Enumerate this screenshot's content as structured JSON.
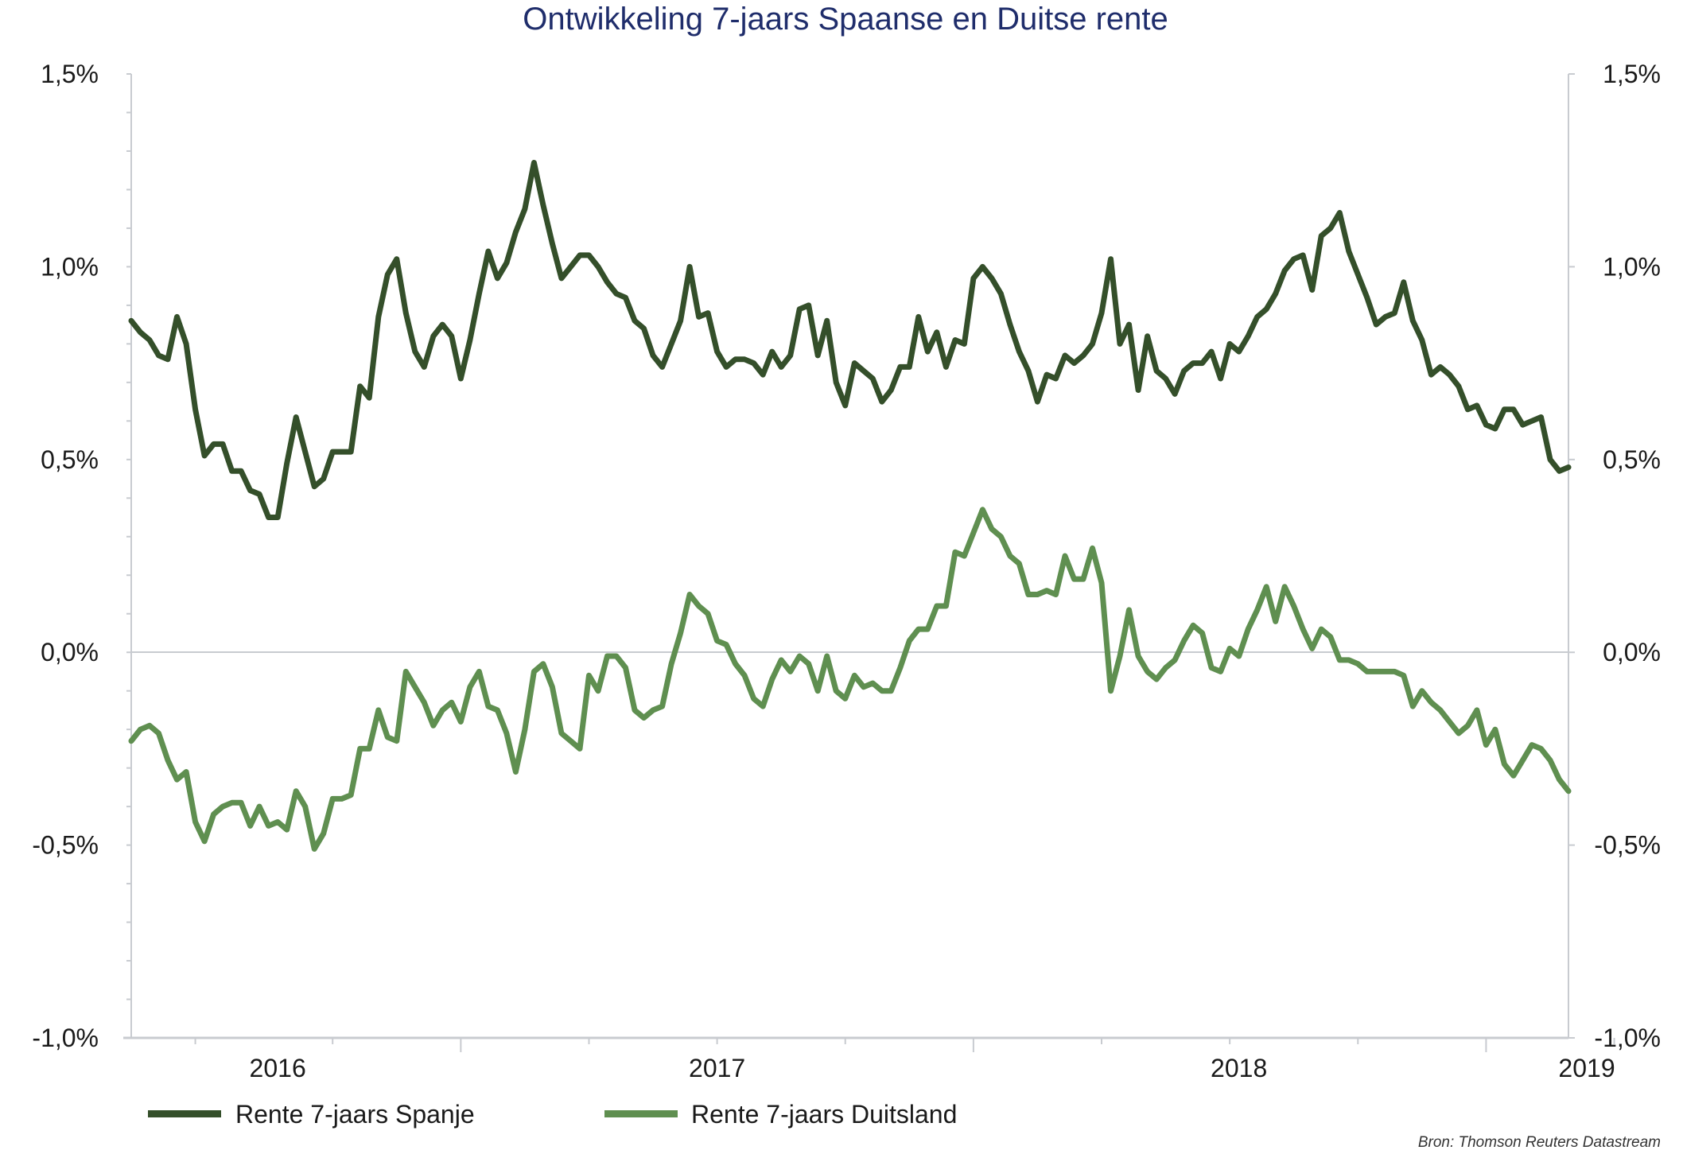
{
  "chart_data": {
    "type": "line",
    "title": "Ontwikkeling 7-jaars Spaanse en Duitse rente",
    "xlabel": "",
    "ylabel": "",
    "ylim": [
      -1.0,
      1.5
    ],
    "y_ticks": [
      1.5,
      1.0,
      0.5,
      0.0,
      -0.5,
      -1.0
    ],
    "y_tick_labels": [
      "1,5%",
      "1,0%",
      "0,5%",
      "0,0%",
      "-0,5%",
      "-1,0%"
    ],
    "y_tick_labels_right": [
      "1,5%",
      "1,0%",
      "0,5%",
      "0,0%",
      "-0,5%",
      "-1,0%"
    ],
    "x_tick_labels": [
      {
        "label": "2016",
        "index": 16
      },
      {
        "label": "2017",
        "index": 64
      },
      {
        "label": "2018",
        "index": 121
      },
      {
        "label": "2019",
        "index": 159
      }
    ],
    "x_minor_ticks": [
      7,
      22,
      36,
      50,
      64,
      78,
      92,
      106,
      120,
      134,
      148,
      162
    ],
    "x_major_ticks": [
      36,
      92,
      148
    ],
    "grid": false,
    "legend_position": "bottom-left",
    "source": "Bron: Thomson Reuters Datastream",
    "series": [
      {
        "name": "Rente 7-jaars Spanje",
        "color": "#344f2a",
        "values": [
          0.86,
          0.83,
          0.81,
          0.77,
          0.76,
          0.87,
          0.8,
          0.63,
          0.51,
          0.54,
          0.54,
          0.47,
          0.47,
          0.42,
          0.41,
          0.35,
          0.35,
          0.49,
          0.61,
          0.52,
          0.43,
          0.45,
          0.52,
          0.52,
          0.52,
          0.69,
          0.66,
          0.87,
          0.98,
          1.02,
          0.88,
          0.78,
          0.74,
          0.82,
          0.85,
          0.82,
          0.71,
          0.81,
          0.93,
          1.04,
          0.97,
          1.01,
          1.09,
          1.15,
          1.27,
          1.16,
          1.06,
          0.97,
          1.0,
          1.03,
          1.03,
          1.0,
          0.96,
          0.93,
          0.92,
          0.86,
          0.84,
          0.77,
          0.74,
          0.8,
          0.86,
          1.0,
          0.87,
          0.88,
          0.78,
          0.74,
          0.76,
          0.76,
          0.75,
          0.72,
          0.78,
          0.74,
          0.77,
          0.89,
          0.9,
          0.77,
          0.86,
          0.7,
          0.64,
          0.75,
          0.73,
          0.71,
          0.65,
          0.68,
          0.74,
          0.74,
          0.87,
          0.78,
          0.83,
          0.74,
          0.81,
          0.8,
          0.97,
          1.0,
          0.97,
          0.93,
          0.85,
          0.78,
          0.73,
          0.65,
          0.72,
          0.71,
          0.77,
          0.75,
          0.77,
          0.8,
          0.88,
          1.02,
          0.8,
          0.85,
          0.68,
          0.82,
          0.73,
          0.71,
          0.67,
          0.73,
          0.75,
          0.75,
          0.78,
          0.71,
          0.8,
          0.78,
          0.82,
          0.87,
          0.89,
          0.93,
          0.99,
          1.02,
          1.03,
          0.94,
          1.08,
          1.1,
          1.14,
          1.04,
          0.98,
          0.92,
          0.85,
          0.87,
          0.88,
          0.96,
          0.86,
          0.81,
          0.72,
          0.74,
          0.72,
          0.69,
          0.63,
          0.64,
          0.59,
          0.58,
          0.63,
          0.63,
          0.59,
          0.6,
          0.61,
          0.5,
          0.47,
          0.48
        ]
      },
      {
        "name": "Rente 7-jaars Duitsland",
        "color": "#5f8f50",
        "values": [
          -0.23,
          -0.2,
          -0.19,
          -0.21,
          -0.28,
          -0.33,
          -0.31,
          -0.44,
          -0.49,
          -0.42,
          -0.4,
          -0.39,
          -0.39,
          -0.45,
          -0.4,
          -0.45,
          -0.44,
          -0.46,
          -0.36,
          -0.4,
          -0.51,
          -0.47,
          -0.38,
          -0.38,
          -0.37,
          -0.25,
          -0.25,
          -0.15,
          -0.22,
          -0.23,
          -0.05,
          -0.09,
          -0.13,
          -0.19,
          -0.15,
          -0.13,
          -0.18,
          -0.09,
          -0.05,
          -0.14,
          -0.15,
          -0.21,
          -0.31,
          -0.2,
          -0.05,
          -0.03,
          -0.09,
          -0.21,
          -0.23,
          -0.25,
          -0.06,
          -0.1,
          -0.01,
          -0.01,
          -0.04,
          -0.15,
          -0.17,
          -0.15,
          -0.14,
          -0.03,
          0.05,
          0.15,
          0.12,
          0.1,
          0.03,
          0.02,
          -0.03,
          -0.06,
          -0.12,
          -0.14,
          -0.07,
          -0.02,
          -0.05,
          -0.01,
          -0.03,
          -0.1,
          -0.01,
          -0.1,
          -0.12,
          -0.06,
          -0.09,
          -0.08,
          -0.1,
          -0.1,
          -0.04,
          0.03,
          0.06,
          0.06,
          0.12,
          0.12,
          0.26,
          0.25,
          0.31,
          0.37,
          0.32,
          0.3,
          0.25,
          0.23,
          0.15,
          0.15,
          0.16,
          0.15,
          0.25,
          0.19,
          0.19,
          0.27,
          0.18,
          -0.1,
          -0.01,
          0.11,
          -0.01,
          -0.05,
          -0.07,
          -0.04,
          -0.02,
          0.03,
          0.07,
          0.05,
          -0.04,
          -0.05,
          0.01,
          -0.01,
          0.06,
          0.11,
          0.17,
          0.08,
          0.17,
          0.12,
          0.06,
          0.01,
          0.06,
          0.04,
          -0.02,
          -0.02,
          -0.03,
          -0.05,
          -0.05,
          -0.05,
          -0.05,
          -0.06,
          -0.14,
          -0.1,
          -0.13,
          -0.15,
          -0.18,
          -0.21,
          -0.19,
          -0.15,
          -0.24,
          -0.2,
          -0.29,
          -0.32,
          -0.28,
          -0.24,
          -0.25,
          -0.28,
          -0.33,
          -0.36
        ]
      }
    ]
  }
}
